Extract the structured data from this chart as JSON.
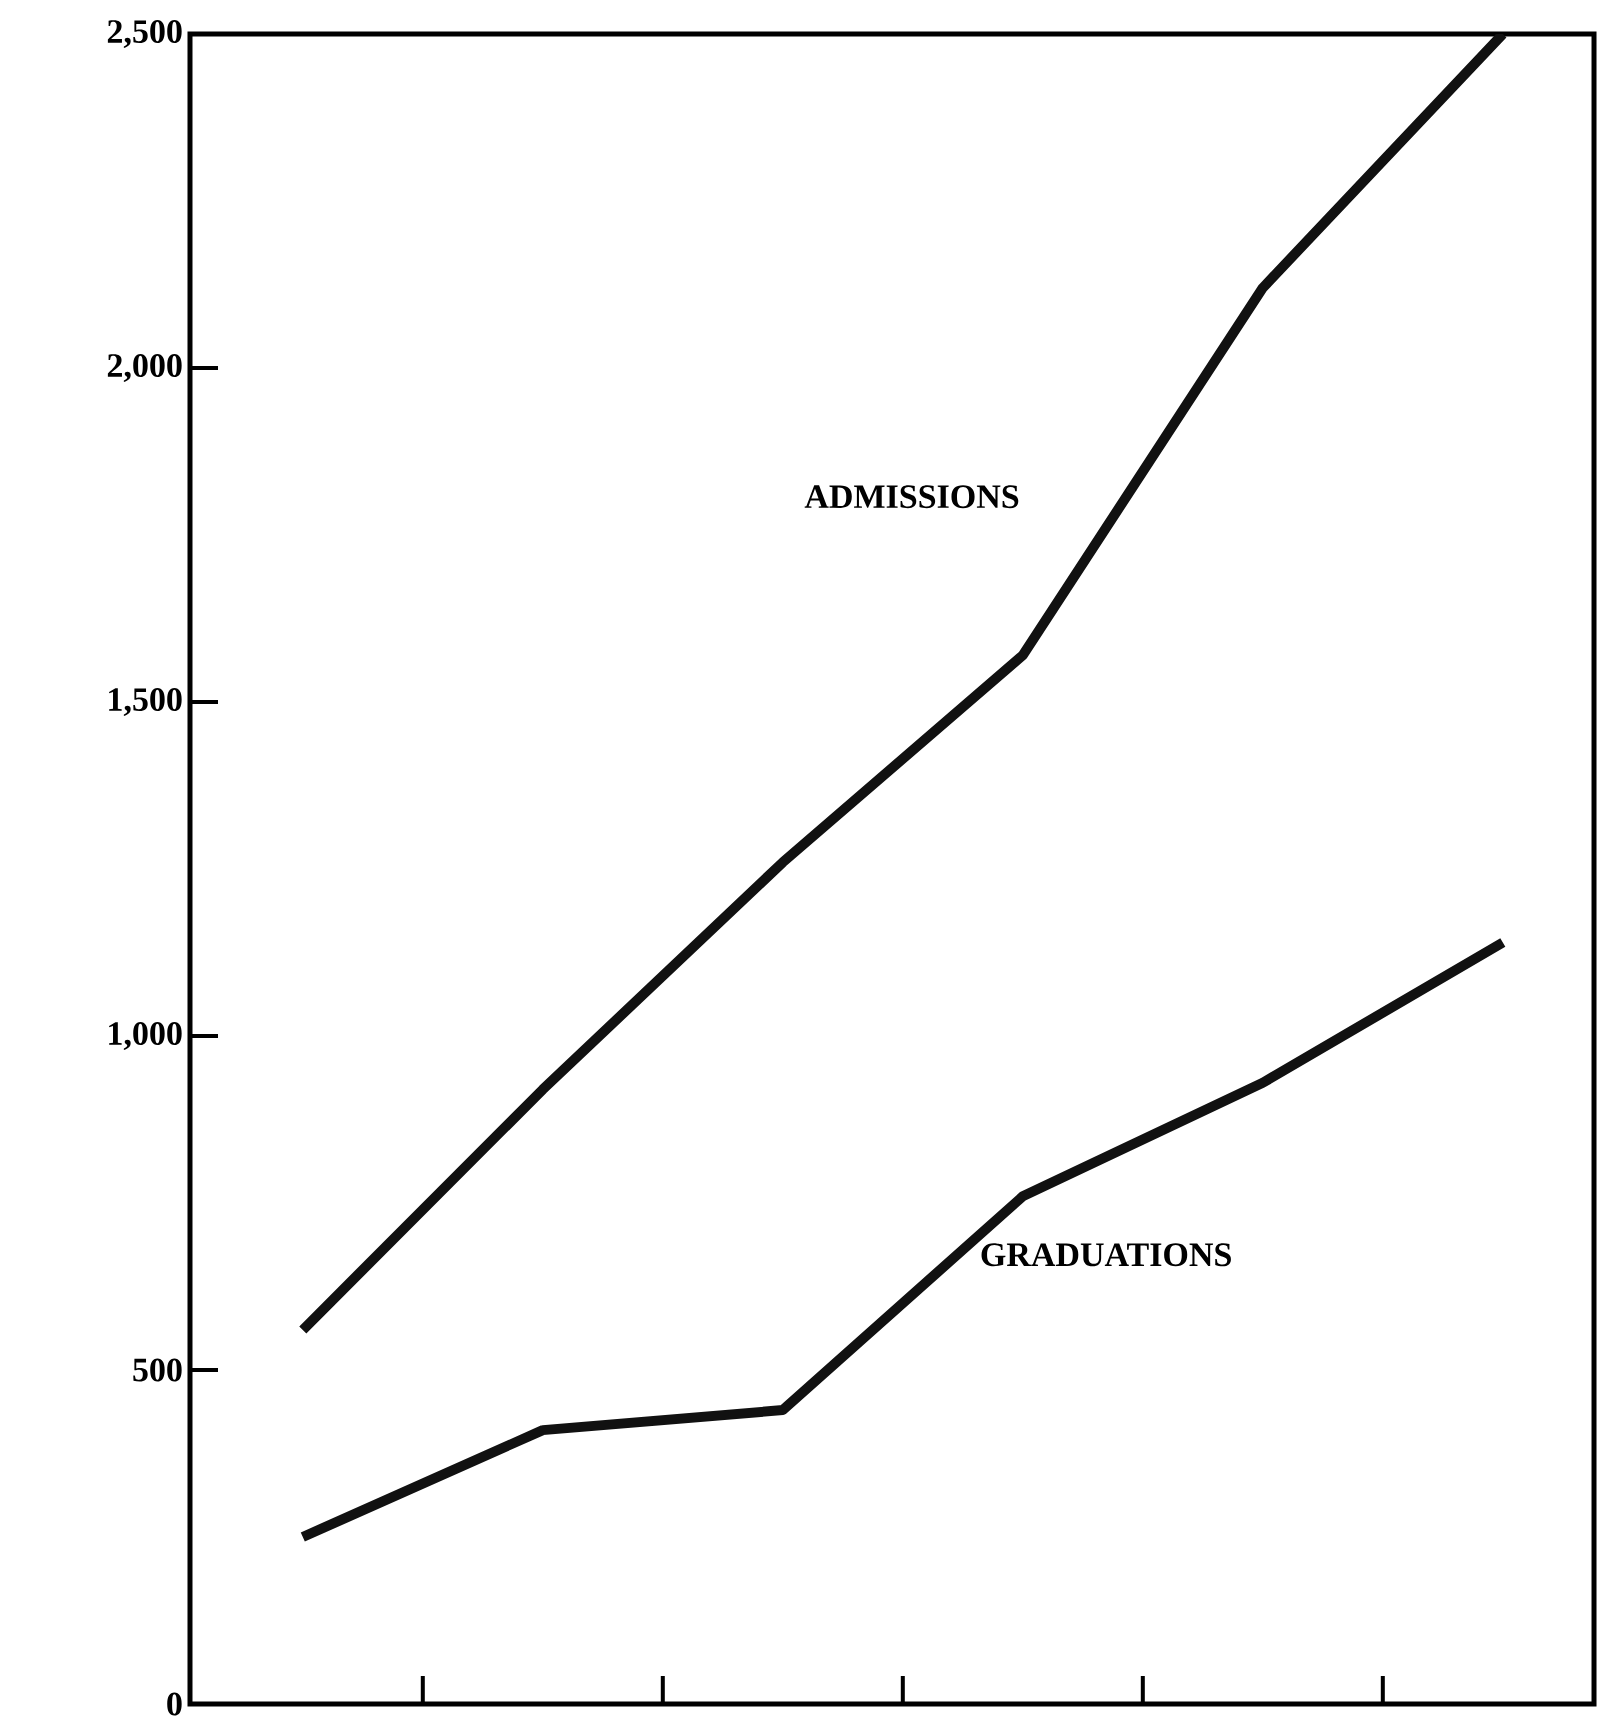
{
  "chart_data": {
    "type": "line",
    "categories": [
      null,
      null,
      null,
      null,
      null,
      null
    ],
    "series": [
      {
        "name": "ADMISSIONS",
        "color": "#111111",
        "values": [
          560,
          920,
          1260,
          1570,
          2120,
          2500
        ]
      },
      {
        "name": "GRADUATIONS",
        "color": "#111111",
        "values": [
          250,
          410,
          440,
          760,
          930,
          1140
        ]
      }
    ],
    "ylim": [
      0,
      2500
    ],
    "yticks": [
      {
        "value": 0,
        "label": "0"
      },
      {
        "value": 500,
        "label": "500"
      },
      {
        "value": 1000,
        "label": "1,000"
      },
      {
        "value": 1500,
        "label": "1,500"
      },
      {
        "value": 2000,
        "label": "2,000"
      },
      {
        "value": 2500,
        "label": "2,500"
      }
    ],
    "grid": false,
    "legend": false,
    "marker": "none",
    "line_style": "solid"
  }
}
